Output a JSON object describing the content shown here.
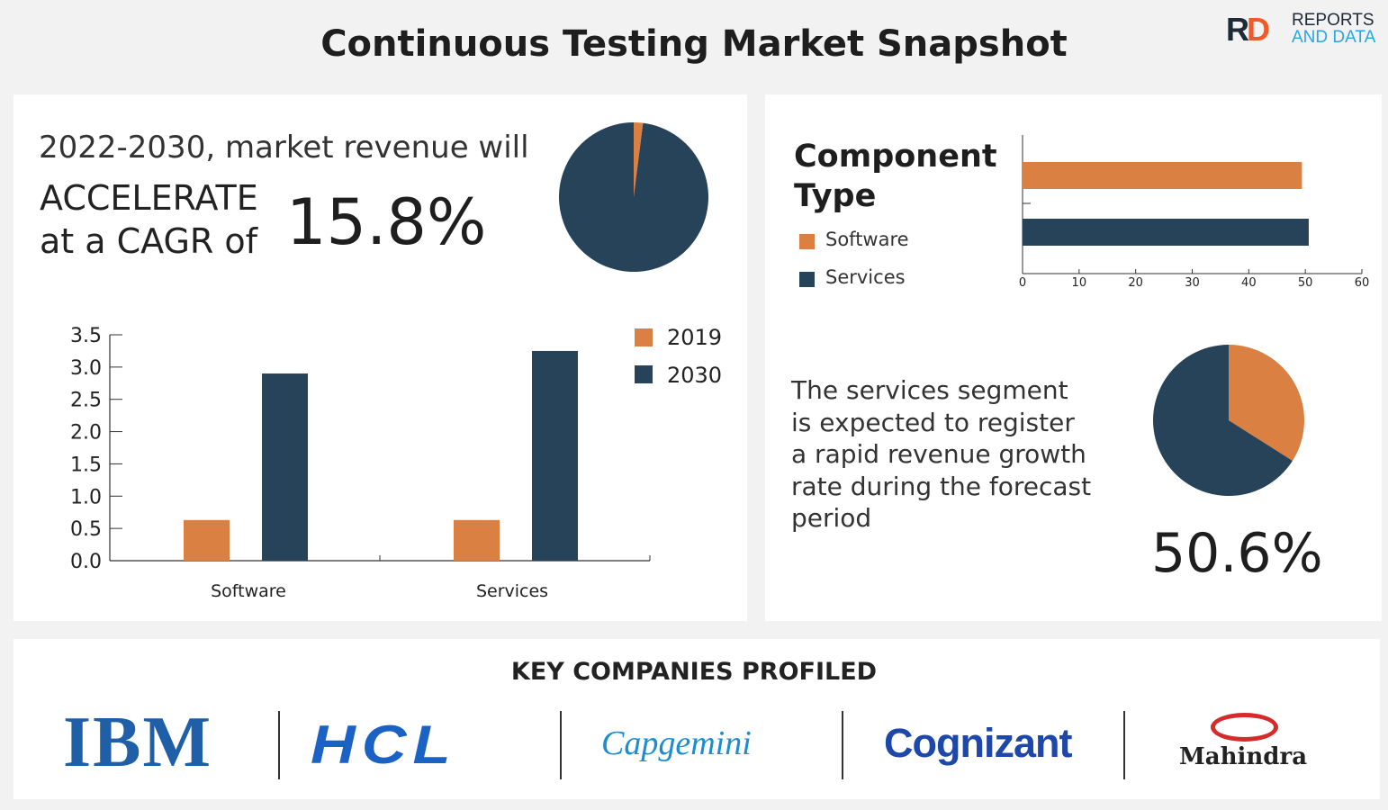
{
  "header": {
    "title": "Continuous Testing Market Snapshot",
    "logo": {
      "mark": "RD",
      "line1": "REPORTS",
      "line2": "AND DATA"
    }
  },
  "colors": {
    "orange": "#d98042",
    "navy": "#27435a",
    "background": "#f2f2f2"
  },
  "cagr": {
    "line1": "2022-2030, market revenue will",
    "line2": "ACCELERATE",
    "line3": "at a CAGR of",
    "value": "15.8%"
  },
  "services_note": {
    "lines": [
      "The services segment",
      "is expected to register",
      "a rapid revenue growth",
      "rate during the forecast",
      "period"
    ],
    "value": "50.6%"
  },
  "companies": {
    "heading": "KEY COMPANIES PROFILED",
    "names": [
      "IBM",
      "HCL",
      "Capgemini",
      "Cognizant",
      "Mahindra"
    ]
  },
  "chart_data": [
    {
      "type": "pie",
      "title": "",
      "values": [
        2,
        98
      ],
      "colors": [
        "#d98042",
        "#27435a"
      ]
    },
    {
      "type": "bar",
      "categories": [
        "Software",
        "Services"
      ],
      "series": [
        {
          "name": "2019",
          "values": [
            0.63,
            0.63
          ],
          "color": "#d98042"
        },
        {
          "name": "2030",
          "values": [
            2.9,
            3.25
          ],
          "color": "#27435a"
        }
      ],
      "yticks": [
        "0.0",
        "0.5",
        "1.0",
        "1.5",
        "2.0",
        "2.5",
        "3.0",
        "3.5"
      ],
      "ylim": [
        0,
        3.5
      ],
      "legend": "top-right"
    },
    {
      "type": "bar",
      "orientation": "horizontal",
      "title": "Component Type",
      "categories": [
        "Software",
        "Services"
      ],
      "values": [
        49.4,
        50.6
      ],
      "colors": [
        "#d98042",
        "#27435a"
      ],
      "xticks": [
        "0",
        "10",
        "20",
        "30",
        "40",
        "50",
        "60"
      ],
      "xlim": [
        0,
        60
      ],
      "legend": "left"
    },
    {
      "type": "pie",
      "values": [
        34,
        66
      ],
      "colors": [
        "#d98042",
        "#27435a"
      ]
    }
  ]
}
